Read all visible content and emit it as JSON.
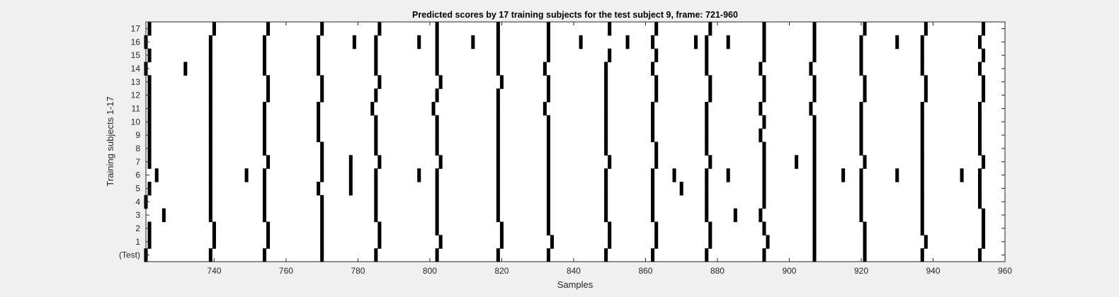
{
  "chart_data": {
    "type": "heatmap",
    "title": "Predicted scores by 17 training subjects for the test subject 9, frame: 721-960",
    "xlabel": "Samples",
    "ylabel": "Training subjects 1-17",
    "xlim": [
      721,
      960
    ],
    "x_ticks": [
      740,
      760,
      780,
      800,
      820,
      840,
      860,
      880,
      900,
      920,
      940,
      960
    ],
    "y_tick_labels": [
      "(Test)",
      "1",
      "2",
      "3",
      "4",
      "5",
      "6",
      "7",
      "8",
      "9",
      "10",
      "11",
      "12",
      "13",
      "14",
      "15",
      "16",
      "17"
    ],
    "grid": false,
    "colors": {
      "mark": "#000000",
      "background": "#ffffff"
    },
    "rows": [
      {
        "label": "(Test)",
        "x": [
          721,
          739,
          754,
          770,
          785,
          802,
          819,
          833,
          849,
          862,
          877,
          893,
          907,
          921,
          937,
          953
        ]
      },
      {
        "label": "1",
        "x": [
          722,
          740,
          755,
          770,
          786,
          803,
          820,
          834,
          850,
          863,
          878,
          894,
          907,
          921,
          938,
          954
        ]
      },
      {
        "label": "2",
        "x": [
          722,
          740,
          755,
          770,
          786,
          802,
          820,
          833,
          850,
          863,
          878,
          893,
          907,
          921,
          937,
          954
        ]
      },
      {
        "label": "3",
        "x": [
          726,
          739,
          754,
          770,
          785,
          802,
          819,
          833,
          849,
          862,
          877,
          885,
          892,
          907,
          920,
          937,
          954
        ]
      },
      {
        "label": "4",
        "x": [
          721,
          739,
          754,
          770,
          785,
          802,
          819,
          833,
          849,
          862,
          877,
          893,
          907,
          920,
          937,
          953
        ]
      },
      {
        "label": "5",
        "x": [
          722,
          739,
          754,
          769,
          778,
          785,
          802,
          819,
          833,
          849,
          862,
          870,
          877,
          893,
          907,
          920,
          937,
          953
        ]
      },
      {
        "label": "6",
        "x": [
          724,
          739,
          749,
          754,
          770,
          778,
          785,
          797,
          802,
          819,
          833,
          849,
          862,
          868,
          877,
          883,
          893,
          907,
          915,
          920,
          930,
          937,
          948,
          953
        ]
      },
      {
        "label": "7",
        "x": [
          722,
          739,
          755,
          770,
          778,
          786,
          803,
          819,
          833,
          850,
          863,
          878,
          893,
          902,
          907,
          921,
          937,
          954
        ]
      },
      {
        "label": "8",
        "x": [
          722,
          739,
          754,
          770,
          785,
          802,
          819,
          833,
          849,
          863,
          877,
          893,
          907,
          920,
          937,
          953
        ]
      },
      {
        "label": "9",
        "x": [
          722,
          739,
          754,
          769,
          785,
          802,
          819,
          833,
          849,
          862,
          877,
          892,
          907,
          920,
          937,
          953
        ]
      },
      {
        "label": "10",
        "x": [
          722,
          739,
          754,
          769,
          785,
          802,
          819,
          833,
          849,
          862,
          877,
          893,
          907,
          920,
          937,
          953
        ]
      },
      {
        "label": "11",
        "x": [
          722,
          739,
          754,
          769,
          784,
          801,
          819,
          832,
          849,
          862,
          877,
          892,
          906,
          920,
          937,
          953
        ]
      },
      {
        "label": "12",
        "x": [
          722,
          739,
          755,
          770,
          785,
          802,
          819,
          833,
          849,
          863,
          878,
          893,
          907,
          921,
          938,
          954
        ]
      },
      {
        "label": "13",
        "x": [
          722,
          739,
          755,
          770,
          786,
          803,
          820,
          833,
          849,
          863,
          878,
          893,
          907,
          921,
          938,
          954
        ]
      },
      {
        "label": "14",
        "x": [
          721,
          732,
          739,
          754,
          769,
          785,
          802,
          819,
          832,
          849,
          862,
          877,
          892,
          906,
          920,
          937,
          953
        ]
      },
      {
        "label": "15",
        "x": [
          722,
          739,
          754,
          769,
          785,
          802,
          819,
          833,
          850,
          863,
          877,
          893,
          907,
          920,
          937,
          954
        ]
      },
      {
        "label": "16",
        "x": [
          721,
          739,
          754,
          769,
          779,
          785,
          797,
          802,
          812,
          819,
          833,
          842,
          855,
          862,
          874,
          877,
          883,
          893,
          907,
          920,
          930,
          937,
          953
        ]
      },
      {
        "label": "17",
        "x": [
          722,
          740,
          755,
          770,
          786,
          802,
          819,
          833,
          850,
          863,
          878,
          893,
          907,
          921,
          938,
          954
        ]
      }
    ]
  }
}
